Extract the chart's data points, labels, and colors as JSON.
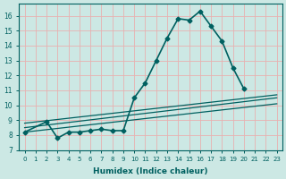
{
  "xlabel": "Humidex (Indice chaleur)",
  "bg_color": "#cce8e4",
  "grid_color": "#dda0a0",
  "line_color": "#006060",
  "xlim": [
    -0.5,
    23.5
  ],
  "ylim": [
    7,
    16.8
  ],
  "yticks": [
    7,
    8,
    9,
    10,
    11,
    12,
    13,
    14,
    15,
    16
  ],
  "xticks": [
    0,
    1,
    2,
    3,
    4,
    5,
    6,
    7,
    8,
    9,
    10,
    11,
    12,
    13,
    14,
    15,
    16,
    17,
    18,
    19,
    20,
    21,
    22,
    23
  ],
  "series_main": {
    "x": [
      0,
      2,
      3,
      4,
      5,
      6,
      7,
      8,
      9,
      10,
      11,
      12,
      13,
      14,
      15,
      16,
      17,
      18,
      19,
      20
    ],
    "y": [
      8.2,
      8.9,
      7.8,
      8.2,
      8.2,
      8.3,
      8.4,
      8.3,
      8.3,
      10.5,
      11.5,
      13.0,
      14.5,
      15.8,
      15.7,
      16.3,
      15.3,
      14.3,
      12.5,
      11.1
    ],
    "marker": "D",
    "markersize": 2.5,
    "linewidth": 1.2
  },
  "series_lines": [
    {
      "x": [
        0,
        23
      ],
      "y": [
        8.5,
        10.5
      ]
    },
    {
      "x": [
        0,
        23
      ],
      "y": [
        8.2,
        10.1
      ]
    },
    {
      "x": [
        0,
        23
      ],
      "y": [
        8.8,
        10.7
      ]
    }
  ]
}
